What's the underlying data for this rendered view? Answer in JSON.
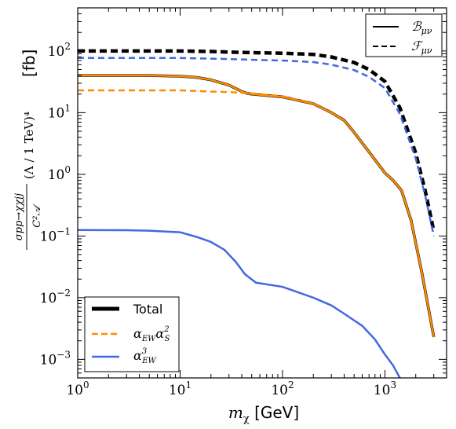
{
  "chart_data": {
    "type": "line",
    "xscale": "log",
    "yscale": "log",
    "xlim": [
      1,
      4000
    ],
    "ylim": [
      0.0005,
      500
    ],
    "x_ticks": [
      {
        "value": 1,
        "base": "10",
        "exp": "0"
      },
      {
        "value": 10,
        "base": "10",
        "exp": "1"
      },
      {
        "value": 100,
        "base": "10",
        "exp": "2"
      },
      {
        "value": 1000,
        "base": "10",
        "exp": "3"
      }
    ],
    "y_ticks": [
      {
        "value": 0.001,
        "base": "10",
        "exp": "−3"
      },
      {
        "value": 0.01,
        "base": "10",
        "exp": "−2"
      },
      {
        "value": 0.1,
        "base": "10",
        "exp": "−1"
      },
      {
        "value": 1,
        "base": "10",
        "exp": "0"
      },
      {
        "value": 10,
        "base": "10",
        "exp": "1"
      },
      {
        "value": 100,
        "base": "10",
        "exp": "2"
      }
    ],
    "xlabel": {
      "var": "m",
      "sub": "χ",
      "unit": "[GeV]"
    },
    "ylabel": {
      "frac_num": "σpp→χχjj",
      "frac_den": "C²𝒜",
      "paren": "(Λ / 1 TeV)⁴",
      "unit": "[fb]"
    },
    "grid": false,
    "colors": {
      "total": "#000000",
      "ew_s2": "#ff8c00",
      "ew3": "#4169e1"
    },
    "series": [
      {
        "key": "total_F",
        "group": "Total",
        "style": "dashed",
        "color": "#000000",
        "x": [
          1,
          5,
          10,
          20,
          30,
          50,
          100,
          200,
          300,
          500,
          700,
          1000,
          1400,
          2000,
          2500,
          3000
        ],
        "y": [
          100,
          100,
          100,
          98,
          96,
          94,
          92,
          88,
          80,
          65,
          50,
          32,
          12,
          2.2,
          0.5,
          0.12
        ]
      },
      {
        "key": "ew3_F",
        "group": "ew3",
        "style": "dashed",
        "color": "#4169e1",
        "x": [
          1,
          5,
          10,
          20,
          30,
          50,
          100,
          200,
          300,
          500,
          700,
          1000,
          1400,
          2000,
          2500,
          3000
        ],
        "y": [
          77,
          77,
          77,
          75,
          74,
          72,
          70,
          66,
          60,
          49,
          38,
          25,
          9.5,
          1.8,
          0.42,
          0.1
        ]
      },
      {
        "key": "total_B",
        "group": "Total",
        "style": "solid",
        "color": "#000000",
        "x": [
          1,
          5,
          10,
          15,
          20,
          30,
          40,
          45,
          50,
          100,
          200,
          300,
          400,
          500,
          700,
          1000,
          1200,
          1450,
          1800,
          2300,
          3000
        ],
        "y": [
          40,
          40,
          39,
          37,
          34,
          28,
          22,
          20.5,
          20,
          18,
          14,
          10,
          7.5,
          4.8,
          2.3,
          1.05,
          0.8,
          0.55,
          0.18,
          0.025,
          0.0023
        ]
      },
      {
        "key": "ew_s2_B",
        "group": "ew_s2",
        "style": "solid",
        "color": "#ff8c00",
        "x": [
          1,
          5,
          10,
          15,
          20,
          30,
          40,
          45,
          50,
          100,
          200,
          300,
          400,
          500,
          700,
          1000,
          1200,
          1450,
          1800,
          2300,
          3000
        ],
        "y": [
          40,
          40,
          39,
          37,
          34,
          28,
          22,
          20.5,
          20,
          18,
          14,
          10,
          7.5,
          4.8,
          2.3,
          1.05,
          0.8,
          0.55,
          0.18,
          0.025,
          0.0023
        ]
      },
      {
        "key": "ew_s2_F",
        "group": "ew_s2",
        "style": "dashed",
        "color": "#ff8c00",
        "x": [
          1,
          5,
          10,
          20,
          30,
          40,
          50,
          100,
          200,
          300
        ],
        "y": [
          23,
          23,
          23,
          22,
          21.5,
          21,
          20.5,
          18.5,
          14,
          10
        ]
      },
      {
        "key": "ew3_B",
        "group": "ew3",
        "style": "solid",
        "color": "#4169e1",
        "x": [
          1,
          3,
          5,
          10,
          15,
          20,
          27,
          35,
          43,
          55,
          100,
          200,
          300,
          400,
          600,
          800,
          1000,
          1200,
          1400
        ],
        "y": [
          0.125,
          0.124,
          0.122,
          0.115,
          0.095,
          0.08,
          0.06,
          0.038,
          0.024,
          0.0175,
          0.015,
          0.01,
          0.0075,
          0.0055,
          0.0035,
          0.0021,
          0.0012,
          0.0008,
          0.0005
        ]
      }
    ],
    "legend_style": {
      "placement": "top-right",
      "entries": [
        {
          "style": "solid",
          "label": "ℬ",
          "sub": "μν"
        },
        {
          "style": "dashed",
          "label": "ℱ",
          "sub": "μν"
        }
      ]
    },
    "legend_couplings": {
      "placement": "bottom-left",
      "entries": [
        {
          "group": "Total",
          "color": "#000000",
          "label": "Total"
        },
        {
          "group": "ew_s2",
          "color": "#ff8c00",
          "label": "α",
          "sub": "EW",
          "label2": "α",
          "sup2": "2",
          "sub2": "S"
        },
        {
          "group": "ew3",
          "color": "#4169e1",
          "label": "α",
          "sup": "3",
          "sub": "EW"
        }
      ]
    }
  }
}
